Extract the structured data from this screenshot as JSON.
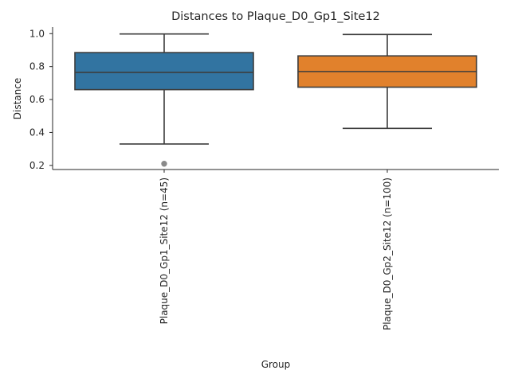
{
  "chart_data": {
    "type": "box",
    "title": "Distances to Plaque_D0_Gp1_Site12",
    "xlabel": "Group",
    "ylabel": "Distance",
    "ylim": [
      0.175,
      1.04
    ],
    "yticks": [
      0.2,
      0.4,
      0.6,
      0.8,
      1.0
    ],
    "ytick_labels": [
      "0.2",
      "0.4",
      "0.6",
      "0.8",
      "1.0"
    ],
    "grid": false,
    "categories": [
      "Plaque_D0_Gp1_Site12 (n=45)",
      "Plaque_D0_Gp2_Site12 (n=100)"
    ],
    "boxes": [
      {
        "category": "Plaque_D0_Gp1_Site12 (n=45)",
        "whisker_low": 0.33,
        "q1": 0.66,
        "median": 0.765,
        "q3": 0.885,
        "whisker_high": 0.998,
        "outliers": [
          0.21
        ],
        "color": "#3274a1"
      },
      {
        "category": "Plaque_D0_Gp2_Site12 (n=100)",
        "whisker_low": 0.425,
        "q1": 0.675,
        "median": 0.77,
        "q3": 0.865,
        "whisker_high": 0.995,
        "outliers": [],
        "color": "#e1812c"
      }
    ]
  }
}
